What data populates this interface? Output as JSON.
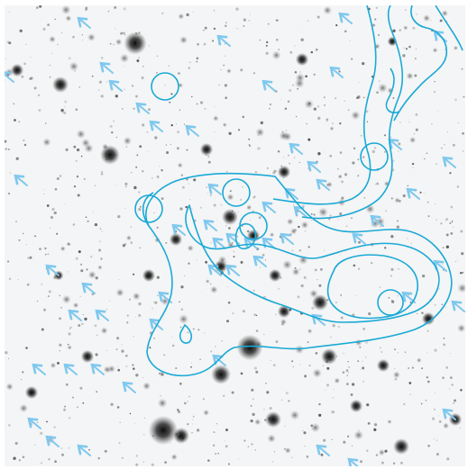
{
  "image": {
    "kind": "inverted greyscale astronomical sky field with overlay",
    "colors": {
      "background": "#f4f5f6",
      "star": "#1a1a1a",
      "overlay_contour": "#1aa9d6",
      "overlay_circle": "#1aa9d6",
      "overlay_arrow": "#7fc8ee"
    }
  }
}
